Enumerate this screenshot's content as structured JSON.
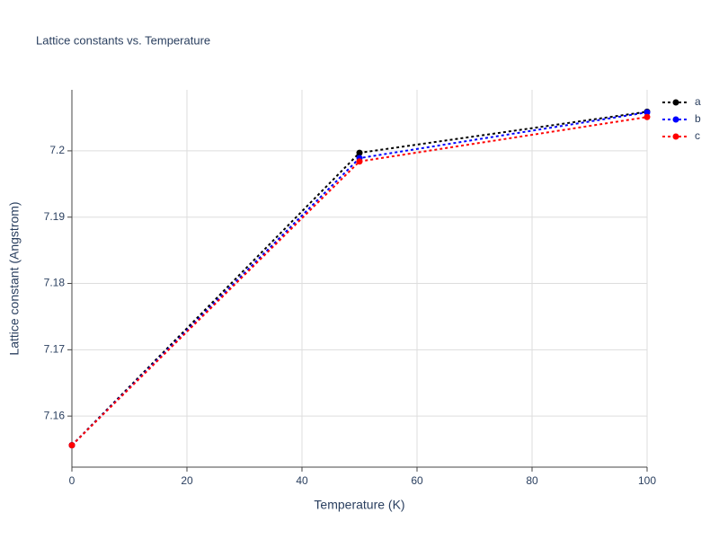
{
  "chart_data": {
    "type": "line",
    "title": "Lattice constants vs. Temperature",
    "x_label": "Temperature (K)",
    "y_label": "Lattice constant (Angstrom)",
    "x": [
      0,
      50,
      100
    ],
    "series": [
      {
        "name": "a",
        "color": "#000000",
        "values": [
          7.1556,
          7.1997,
          7.2059
        ]
      },
      {
        "name": "b",
        "color": "#0000ff",
        "values": [
          7.1556,
          7.1989,
          7.2058
        ]
      },
      {
        "name": "c",
        "color": "#ff0000",
        "values": [
          7.1556,
          7.1984,
          7.2051
        ]
      }
    ],
    "xlim": [
      0,
      100
    ],
    "xticks": [
      0,
      20,
      40,
      60,
      80,
      100
    ],
    "ylim": [
      7.1523,
      7.2092
    ],
    "yticks": [
      7.16,
      7.17,
      7.18,
      7.19,
      7.2
    ],
    "grid": true,
    "legend": "right",
    "line_style": "dotted"
  }
}
